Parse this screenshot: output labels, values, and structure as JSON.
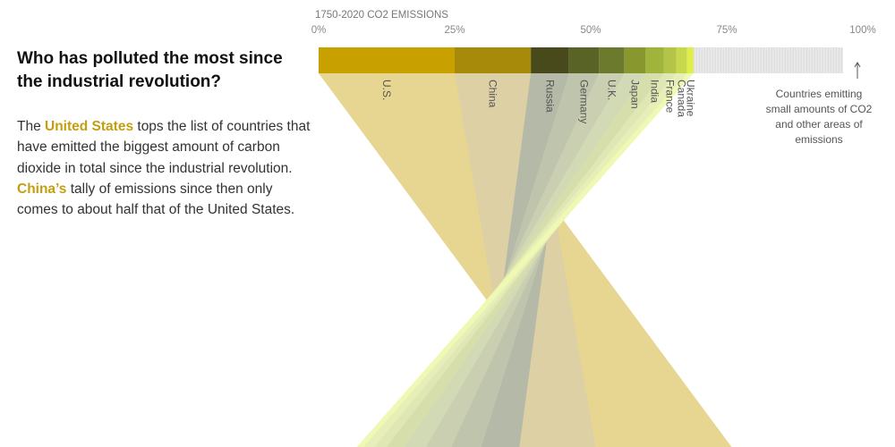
{
  "story": {
    "headline": "Who has polluted the most since the industrial revolution?",
    "intro_parts": [
      {
        "text": "The ",
        "highlight": false
      },
      {
        "text": "United States",
        "highlight": true
      },
      {
        "text": " tops the list of countries that have emitted the biggest amount of carbon dioxide in total since the industrial revolution. ",
        "highlight": false
      },
      {
        "text": "China’s",
        "highlight": true
      },
      {
        "text": " tally of emissions since then only comes to about half that of the United States.",
        "highlight": false
      }
    ],
    "highlight_color": "#c49e12"
  },
  "chart_data": {
    "type": "bar",
    "stacked": true,
    "orientation": "horizontal",
    "title": "1750-2020 CO2 EMISSIONS",
    "x_unit": "%",
    "xlim": [
      0,
      100
    ],
    "x_ticks": [
      "0%",
      "25%",
      "50%",
      "75%",
      "100%"
    ],
    "grid": false,
    "categories": [
      "U.S.",
      "China",
      "Russia",
      "Germany",
      "U.K.",
      "Japan",
      "India",
      "France",
      "Canada",
      "Ukraine"
    ],
    "values": [
      25,
      14,
      7,
      5.5,
      4.7,
      3.9,
      3.3,
      2.3,
      2.0,
      1.2
    ],
    "colors": [
      "#c8a100",
      "#a88a0a",
      "#484a1c",
      "#5a6326",
      "#6c7a2e",
      "#88982e",
      "#a0b43c",
      "#b4c448",
      "#c8d84c",
      "#dfee4a"
    ],
    "ribbon_colors": [
      "#e3cf7e",
      "#d8c896",
      "#a8ad99",
      "#b5ba9e",
      "#c1c7a4",
      "#cad4a8",
      "#cfd99e",
      "#dae3a8",
      "#e5ecac",
      "#eef8a6"
    ],
    "remainder": {
      "label": "Countries emitting small amounts of CO2 and other areas of emissions",
      "color": "#dedede"
    }
  }
}
